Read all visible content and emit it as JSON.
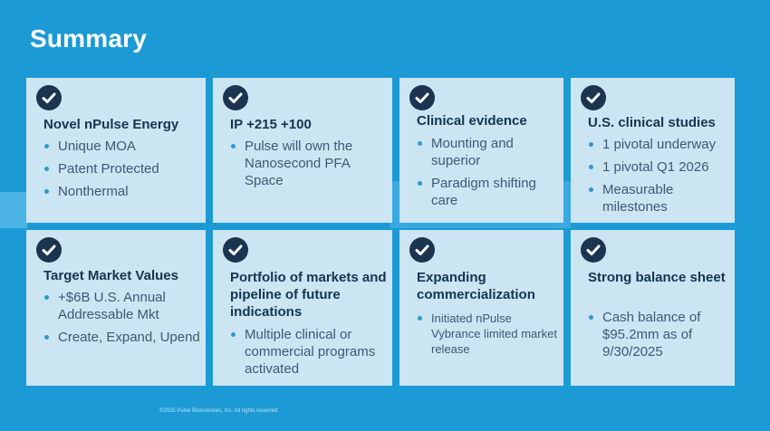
{
  "title": "Summary",
  "cards": [
    {
      "title": "Novel nPulse Energy",
      "bullets": [
        "Unique MOA",
        "Patent Protected",
        "Nonthermal"
      ]
    },
    {
      "title": "IP  +215 +100",
      "bullets": [
        "Pulse will own the Nanosecond PFA Space"
      ]
    },
    {
      "title": "Clinical evidence",
      "bullets": [
        "Mounting and superior",
        "Paradigm shifting care"
      ]
    },
    {
      "title": "U.S. clinical studies",
      "bullets": [
        "1 pivotal underway",
        "1 pivotal Q1 2026",
        "Measurable milestones"
      ]
    },
    {
      "title": "Target Market Values",
      "bullets": [
        "+$6B U.S. Annual Addressable Mkt",
        "Create, Expand, Upend"
      ]
    },
    {
      "title": "Portfolio of markets and pipeline of future indications",
      "bullets": [
        "Multiple clinical or commercial programs activated"
      ]
    },
    {
      "title": "Expanding commercialization",
      "bullets": [
        "Initiated nPulse Vybrance limited market release"
      ]
    },
    {
      "title": "Strong balance sheet",
      "bullets": [
        "Cash balance of $95.2mm as of 9/30/2025"
      ]
    }
  ],
  "footer": "©2025 Pulse Biosciences, Inc. All rights reserved",
  "page_number": "",
  "colors": {
    "background": "#1c9ad6",
    "card": "#cce5f3",
    "check_circle": "#1b3450",
    "heading": "#16344f",
    "bullet_dot": "#2a9ad0"
  }
}
